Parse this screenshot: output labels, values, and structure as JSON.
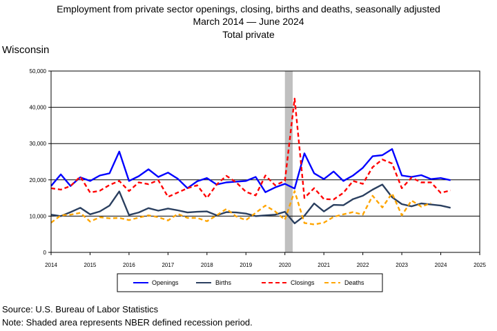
{
  "header": {
    "title_line1": "Employment from private sector openings, closing, births and deaths, seasonally adjusted",
    "title_line2": "March 2014 — June 2024",
    "title_line3": "Total private",
    "region": "Wisconsin"
  },
  "footer": {
    "source": "Source: U.S. Bureau of Labor Statistics",
    "note": "Note: Shaded area represents NBER defined recession period."
  },
  "chart_data": {
    "type": "line",
    "title": "Employment from private sector openings, closing, births and deaths, seasonally adjusted",
    "xlim": [
      2014,
      2025
    ],
    "ylim": [
      0,
      50000
    ],
    "x_ticks": [
      "2014",
      "2015",
      "2016",
      "2017",
      "2018",
      "2019",
      "2020",
      "2021",
      "2022",
      "2023",
      "2024",
      "2025"
    ],
    "y_ticks": [
      "0",
      "10,000",
      "20,000",
      "30,000",
      "40,000",
      "50,000"
    ],
    "grid": "horizontal",
    "recession_shading": [
      2020.0,
      2020.2
    ],
    "legend_position": "bottom",
    "x": [
      2014.0,
      2014.25,
      2014.5,
      2014.75,
      2015.0,
      2015.25,
      2015.5,
      2015.75,
      2016.0,
      2016.25,
      2016.5,
      2016.75,
      2017.0,
      2017.25,
      2017.5,
      2017.75,
      2018.0,
      2018.25,
      2018.5,
      2018.75,
      2019.0,
      2019.25,
      2019.5,
      2019.75,
      2020.0,
      2020.25,
      2020.5,
      2020.75,
      2021.0,
      2021.25,
      2021.5,
      2021.75,
      2022.0,
      2022.25,
      2022.5,
      2022.75,
      2023.0,
      2023.25,
      2023.5,
      2023.75,
      2024.0,
      2024.25
    ],
    "series": [
      {
        "name": "Openings",
        "color": "#0000ff",
        "dash": "solid",
        "values": [
          18300,
          21500,
          18300,
          20700,
          19700,
          21200,
          21800,
          27800,
          19700,
          21000,
          22900,
          20800,
          22000,
          20300,
          17700,
          19600,
          20500,
          18700,
          19300,
          19500,
          19700,
          20800,
          16600,
          17900,
          18900,
          17600,
          27300,
          21800,
          20200,
          22300,
          19700,
          21200,
          23300,
          26500,
          26800,
          28500,
          21200,
          20800,
          21300,
          20200,
          20500,
          19900
        ]
      },
      {
        "name": "Births",
        "color": "#2a3f5f",
        "dash": "solid",
        "values": [
          10400,
          10000,
          11100,
          12300,
          10500,
          11300,
          12900,
          16800,
          10300,
          11000,
          12200,
          11500,
          12100,
          11600,
          11000,
          11200,
          11300,
          10200,
          11100,
          11000,
          10700,
          10000,
          10200,
          10400,
          11200,
          8000,
          10100,
          13500,
          11300,
          13100,
          13000,
          14700,
          15600,
          17300,
          18700,
          15200,
          13300,
          12700,
          13500,
          13200,
          12900,
          12300
        ]
      },
      {
        "name": "Closings",
        "color": "#ff0000",
        "dash": "6 4",
        "values": [
          17700,
          17300,
          18300,
          20900,
          16500,
          17000,
          18600,
          19700,
          16900,
          19300,
          18800,
          19900,
          15300,
          16500,
          17700,
          18500,
          15000,
          18700,
          21100,
          19300,
          16700,
          15700,
          21200,
          18500,
          19700,
          42400,
          15000,
          17700,
          14700,
          14600,
          16400,
          19700,
          18900,
          23500,
          25600,
          24500,
          17700,
          20600,
          19300,
          19300,
          16400,
          17100
        ]
      },
      {
        "name": "Deaths",
        "color": "#ffa500",
        "dash": "6 4",
        "values": [
          8200,
          10200,
          10400,
          10900,
          8500,
          9700,
          9400,
          9500,
          8900,
          9600,
          10200,
          9700,
          8800,
          10600,
          9500,
          9500,
          8600,
          10200,
          12000,
          9900,
          8900,
          10900,
          12900,
          11300,
          9000,
          16900,
          8100,
          7700,
          8200,
          9800,
          10500,
          11100,
          10400,
          15600,
          12400,
          16300,
          10200,
          14300,
          12600,
          13600,
          null,
          null
        ]
      }
    ]
  }
}
